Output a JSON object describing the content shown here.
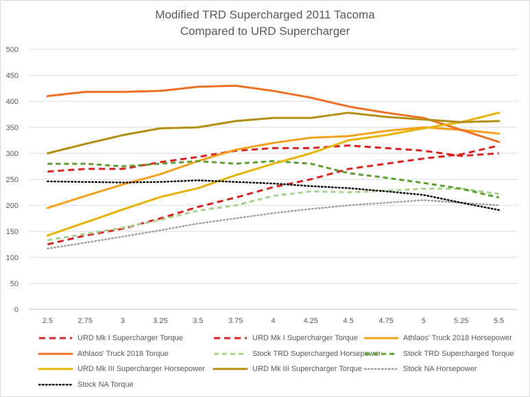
{
  "chart_data": {
    "type": "line",
    "title": "Modified TRD Supercharged 2011 Tacoma",
    "subtitle": "Compared to URD Supercharger",
    "xlabel": "",
    "ylabel": "",
    "categories": [
      "2.5",
      "2.75",
      "3",
      "3.25",
      "3.5",
      "3.75",
      "4",
      "4.25",
      "4.5",
      "4.75",
      "5",
      "5.25",
      "5.5"
    ],
    "ylim": [
      0,
      500
    ],
    "yticks": [
      "0",
      "50",
      "100",
      "150",
      "200",
      "250",
      "300",
      "350",
      "400",
      "450",
      "500"
    ],
    "grid": true,
    "legend_position": "bottom",
    "series": [
      {
        "name": "URD Mk I Supercharger Torque",
        "color": "#e02020",
        "dash": "dash-heavy",
        "values": [
          265,
          270,
          270,
          283,
          293,
          305,
          310,
          310,
          315,
          310,
          305,
          295,
          300
        ]
      },
      {
        "name": "URD Mk I Supercharger Torque",
        "color": "#e02020",
        "dash": "dash-heavy",
        "values": [
          125,
          142,
          155,
          175,
          197,
          215,
          235,
          250,
          270,
          280,
          290,
          298,
          315
        ]
      },
      {
        "name": "Athlaos' Truck 2018 Horsepower",
        "color": "#f5a01b",
        "dash": "solid",
        "values": [
          195,
          218,
          240,
          260,
          285,
          307,
          320,
          330,
          333,
          343,
          350,
          345,
          338
        ]
      },
      {
        "name": "Athlaos' Truck 2018 Torque",
        "color": "#f07023",
        "dash": "solid",
        "values": [
          410,
          418,
          418,
          420,
          428,
          430,
          420,
          407,
          390,
          378,
          368,
          345,
          322
        ]
      },
      {
        "name": "Stock TRD Supercharged Horsepower",
        "color": "#a9d18e",
        "dash": "dash",
        "values": [
          133,
          145,
          157,
          172,
          190,
          200,
          218,
          227,
          225,
          228,
          232,
          232,
          222
        ]
      },
      {
        "name": "Stock TRD Supercharged Torque",
        "color": "#5aa02c",
        "dash": "dash",
        "values": [
          280,
          280,
          275,
          280,
          285,
          280,
          285,
          280,
          262,
          253,
          243,
          232,
          215
        ]
      },
      {
        "name": "URD Mk III Supercharger Horsepower",
        "color": "#e6b400",
        "dash": "solid",
        "values": [
          142,
          167,
          192,
          216,
          233,
          258,
          280,
          300,
          325,
          335,
          348,
          360,
          378
        ]
      },
      {
        "name": "URD Mk III Supercharger Torque",
        "color": "#b38e10",
        "dash": "solid",
        "values": [
          300,
          318,
          335,
          348,
          350,
          362,
          368,
          368,
          378,
          370,
          365,
          360,
          362
        ]
      },
      {
        "name": "Stock NA Horsepower",
        "color": "#a0a0a0",
        "dash": "dot",
        "values": [
          117,
          128,
          140,
          152,
          165,
          175,
          185,
          193,
          200,
          205,
          210,
          205,
          200
        ]
      },
      {
        "name": "Stock NA Torque",
        "color": "#000000",
        "dash": "dot",
        "values": [
          246,
          245,
          244,
          245,
          248,
          245,
          242,
          237,
          233,
          227,
          220,
          205,
          191
        ]
      }
    ]
  }
}
